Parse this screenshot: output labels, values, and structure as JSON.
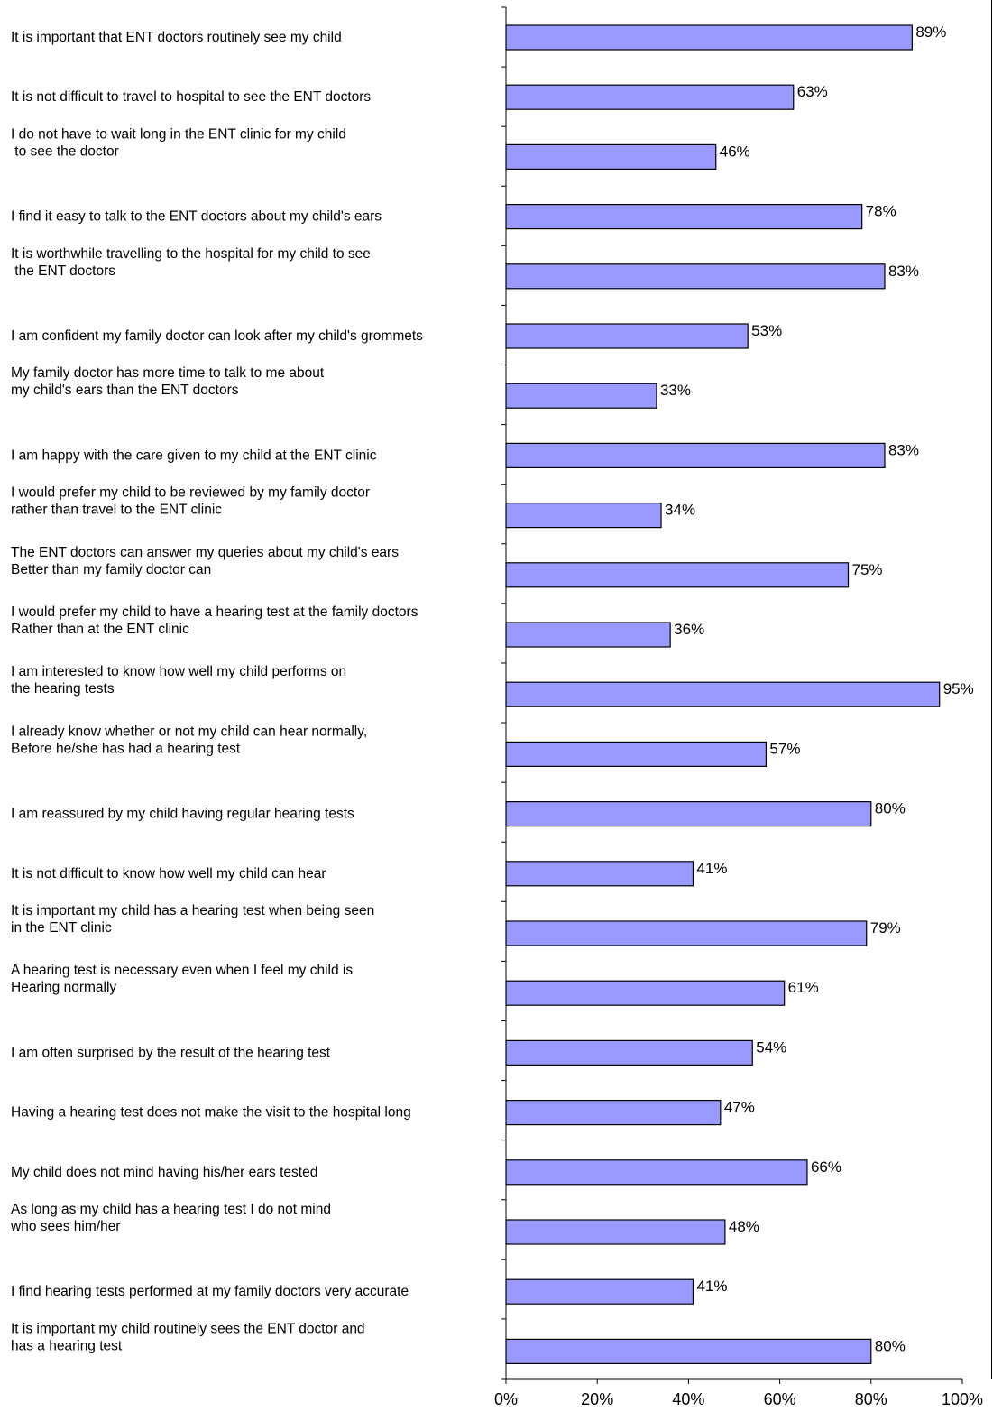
{
  "chart_data": {
    "type": "bar",
    "orientation": "horizontal",
    "categories": [
      "It is important that ENT doctors routinely see my child",
      "It is not difficult to travel to hospital to see the ENT doctors",
      "I do not have to wait long in the ENT clinic for my child\n to see the doctor",
      "I find it easy to talk to the ENT doctors about my child's ears",
      "It is worthwhile travelling to the hospital for my child to see\n the ENT doctors",
      "I am confident my family doctor can look after my child's grommets",
      "My family doctor has more time to talk to me about\nmy child's ears than the ENT doctors",
      "I am happy with the care given to my child at the ENT clinic",
      "I would prefer my child to be reviewed by my family doctor\nrather than travel to the ENT clinic",
      "The ENT doctors can answer my queries about my child's ears\nBetter than my family doctor can",
      "I would prefer my child to have a hearing test at the family doctors\nRather than at the ENT clinic",
      "I am interested to know how well my child performs on\nthe hearing tests",
      "I already know whether or not my child can hear normally,\nBefore he/she has had a hearing test",
      "I am reassured by my child having regular hearing tests",
      "It is not difficult to know how well my child can hear",
      "It is important my child has a hearing test when being seen\nin the ENT clinic",
      "A hearing test is necessary even when I feel my child is\nHearing normally",
      "I am often surprised by the result of the hearing test",
      "Having a hearing test does not make the visit to the hospital long",
      "My child does not mind having his/her ears tested",
      "As long as my child has a hearing test I do not mind\nwho sees him/her",
      "I find hearing tests performed at my family doctors very accurate",
      "It is important my child routinely sees the ENT doctor and\nhas a hearing test"
    ],
    "values": [
      89,
      63,
      46,
      78,
      83,
      53,
      33,
      83,
      34,
      75,
      36,
      95,
      57,
      80,
      41,
      79,
      61,
      54,
      47,
      66,
      48,
      41,
      80
    ],
    "value_labels": [
      "89%",
      "63%",
      "46%",
      "78%",
      "83%",
      "53%",
      "33%",
      "83%",
      "34%",
      "75%",
      "36%",
      "95%",
      "57%",
      "80%",
      "41%",
      "79%",
      "61%",
      "54%",
      "47%",
      "66%",
      "48%",
      "41%",
      "80%"
    ],
    "xlim": [
      0,
      100
    ],
    "x_ticks": [
      "0%",
      "20%",
      "40%",
      "60%",
      "80%",
      "100%"
    ],
    "title": "",
    "xlabel": "",
    "ylabel": "",
    "grid": false,
    "legend": "none",
    "bar_color": "#9999ff",
    "bar_edge_color": "#000000"
  }
}
